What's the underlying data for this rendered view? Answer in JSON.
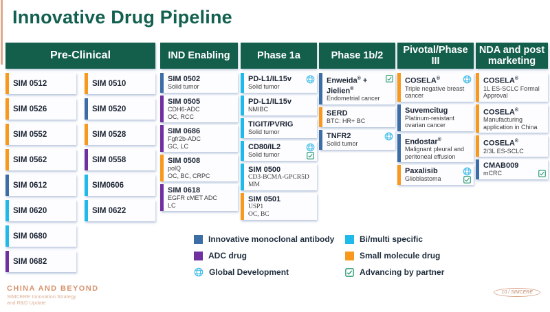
{
  "title": "Innovative Drug Pipeline",
  "header_color": "#135F4B",
  "drug_type_colors": {
    "mab": "#3C6DA4",
    "bi_multi": "#1FB9EA",
    "adc": "#7030A0",
    "small_molecule": "#F8981D"
  },
  "icon_colors": {
    "global": "#45BEEA",
    "partner": "#2E9B77"
  },
  "pipeline": {
    "columns": [
      {
        "id": "pre-clinical",
        "header": "Pre-Clinical",
        "single_line": true,
        "lanes": [
          {
            "cards": [
              {
                "name": "SIM 0512",
                "type": "small_molecule"
              },
              {
                "name": "SIM 0526",
                "type": "small_molecule"
              },
              {
                "name": "SIM 0552",
                "type": "small_molecule"
              },
              {
                "name": "SIM 0562",
                "type": "small_molecule"
              },
              {
                "name": "SIM 0612",
                "type": "mab"
              },
              {
                "name": "SIM 0620",
                "type": "bi_multi"
              },
              {
                "name": "SIM 0680",
                "type": "bi_multi"
              },
              {
                "name": "SIM 0682",
                "type": "adc"
              }
            ]
          },
          {
            "cards": [
              {
                "name": "SIM 0510",
                "type": "small_molecule"
              },
              {
                "name": "SIM 0520",
                "type": "mab"
              },
              {
                "name": "SIM 0528",
                "type": "small_molecule"
              },
              {
                "name": "SIM 0558",
                "type": "adc"
              },
              {
                "name": "SIM0606",
                "type": "bi_multi"
              },
              {
                "name": "SIM 0622",
                "type": "bi_multi"
              }
            ]
          }
        ]
      },
      {
        "id": "ind-enabling",
        "header": "IND Enabling",
        "lanes": [
          {
            "cards": [
              {
                "name": "SIM 0502",
                "type": "mab",
                "details": [
                  "Solid tumor"
                ]
              },
              {
                "name": "SIM 0505",
                "type": "adc",
                "details": [
                  "CDH6-ADC",
                  "OC, RCC"
                ]
              },
              {
                "name": "SIM 0686",
                "type": "adc",
                "details": [
                  "Fgfr2b-ADC",
                  "GC, LC"
                ]
              },
              {
                "name": "SIM 0508",
                "type": "small_molecule",
                "details": [
                  "polQ",
                  "OC, BC, CRPC"
                ]
              },
              {
                "name": "SIM 0618",
                "type": "adc",
                "details": [
                  "EGFR cMET ADC",
                  "LC"
                ]
              }
            ]
          }
        ]
      },
      {
        "id": "phase-1a",
        "header": "Phase 1a",
        "lanes": [
          {
            "cards": [
              {
                "name": "PD-L1/IL15v",
                "type": "bi_multi",
                "details": [
                  "Solid tumor"
                ],
                "icons": [
                  "global"
                ]
              },
              {
                "name": "PD-L1/IL15v",
                "type": "bi_multi",
                "details": [
                  "NMIBC"
                ]
              },
              {
                "name": "TIGIT/PVRIG",
                "type": "bi_multi",
                "details": [
                  "Solid tumor"
                ]
              },
              {
                "name": "CD80/IL2",
                "type": "bi_multi",
                "details": [
                  "Solid tumor"
                ],
                "icons": [
                  "global",
                  "partner"
                ]
              },
              {
                "name": "SIM 0500",
                "type": "bi_multi",
                "details": [
                  "CD3-BCMA-GPCR5D",
                  "MM"
                ],
                "serif": true
              },
              {
                "name": "SIM 0501",
                "type": "small_molecule",
                "details": [
                  "USP1",
                  "OC, BC"
                ],
                "serif": true
              }
            ]
          }
        ]
      },
      {
        "id": "phase-1b2",
        "header": "Phase 1b/2",
        "lanes": [
          {
            "cards": [
              {
                "name": "Enweida® + Jielien®",
                "type": "mab",
                "details": [
                  "Endometrial cancer"
                ],
                "icons": [
                  "partner"
                ]
              },
              {
                "name": "SERD",
                "type": "small_molecule",
                "details": [
                  "BTC: HR+ BC"
                ]
              },
              {
                "name": "TNFR2",
                "type": "mab",
                "details": [
                  "Solid tumor"
                ],
                "icons": [
                  "global"
                ]
              }
            ]
          }
        ]
      },
      {
        "id": "pivotal",
        "header": "Pivotal/Phase III",
        "lanes": [
          {
            "cards": [
              {
                "name": "COSELA®",
                "type": "small_molecule",
                "details": [
                  "Triple negative breast cancer"
                ],
                "icons": [
                  "global"
                ]
              },
              {
                "name": "Suvemcitug",
                "type": "mab",
                "details": [
                  "Platinum-resistant ovarian cancer"
                ]
              },
              {
                "name": "Endostar®",
                "type": "mab",
                "details": [
                  "Malignant pleural and peritoneal effusion"
                ]
              },
              {
                "name": "Paxalisib",
                "type": "small_molecule",
                "details": [
                  "Glioblastoma"
                ],
                "icons": [
                  "global",
                  "partner"
                ]
              }
            ]
          }
        ]
      },
      {
        "id": "nda",
        "header": "NDA and post marketing",
        "lanes": [
          {
            "cards": [
              {
                "name": "COSELA®",
                "type": "small_molecule",
                "details": [
                  "1L ES-SCLC Formal Approval"
                ]
              },
              {
                "name": "COSELA®",
                "type": "small_molecule",
                "details": [
                  "Manufacturing application in China"
                ]
              },
              {
                "name": "COSELA®",
                "type": "small_molecule",
                "details": [
                  "2/3L ES-SCLC"
                ]
              },
              {
                "name": "CMAB009",
                "type": "mab",
                "details": [
                  "mCRC"
                ],
                "icons": [
                  "partner"
                ],
                "icons_bottom": true
              }
            ]
          }
        ]
      }
    ]
  },
  "legend": {
    "items": [
      {
        "type": "mab",
        "label": "Innovative monoclonal antibody"
      },
      {
        "type": "bi_multi",
        "label": "Bi/multi specific"
      },
      {
        "type": "adc",
        "label": "ADC drug"
      },
      {
        "type": "small_molecule",
        "label": "Small molecule drug"
      },
      {
        "icon": "global",
        "label": "Global Development"
      },
      {
        "icon": "partner",
        "label": "Advancing by partner"
      }
    ]
  },
  "footer": {
    "program": "CHINA AND BEYOND",
    "subtitle_line1": "SIMCERE Innovation Strategy",
    "subtitle_line2": "and R&D Update",
    "page": "10 / SIMCERE"
  }
}
